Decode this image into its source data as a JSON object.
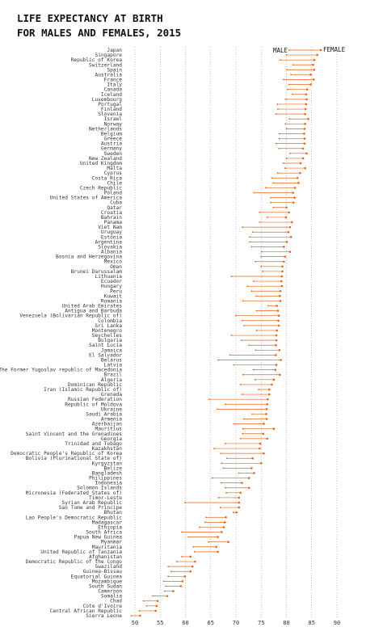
{
  "chart_data": {
    "type": "dumbbell",
    "title": "LIFE EXPECTANCY AT BIRTH\nFOR MALES AND FEMALES, 2015",
    "xlabel": "",
    "ylabel": "",
    "xlim": [
      45,
      92
    ],
    "xticks": [
      50,
      55,
      60,
      65,
      70,
      75,
      80,
      85,
      90
    ],
    "grid": "vertical dotted",
    "legend": [
      "MALE",
      "FEMALE"
    ],
    "colors": {
      "male_dot": "#e8651a",
      "female_dot": "#e8651a",
      "line": "#e8651a",
      "grid": "#999999"
    },
    "countries": [
      "Japan",
      "Singapore",
      "Republic of Korea",
      "Switzerland",
      "Spain",
      "Australia",
      "France",
      "Italy",
      "Canada",
      "Iceland",
      "Luxembourg",
      "Portugal",
      "Finland",
      "Slovenia",
      "Israel",
      "Norway",
      "Netherlands",
      "Belgium",
      "Greece",
      "Austria",
      "Germany",
      "Sweden",
      "New Zealand",
      "United Kingdom",
      "Malta",
      "Cyprus",
      "Costa Rica",
      "Chile",
      "Czech Republic",
      "Poland",
      "United States of America",
      "Cuba",
      "Qatar",
      "Croatia",
      "Bahrain",
      "Panama",
      "Viet Nam",
      "Uruguay",
      "Estonia",
      "Argentina",
      "Slovakia",
      "Albania",
      "Bosnia and Herzegovina",
      "Mexico",
      "Oman",
      "Brunei Darussalam",
      "Lithuania",
      "Ecuador",
      "Hungary",
      "Peru",
      "Kuwait",
      "Romania",
      "United Arab Emirates",
      "Antigua and Barbuda",
      "Venezuela (Bolivarian Republic of)",
      "Colombia",
      "Sri Lanka",
      "Montenegro",
      "Seychelles",
      "Bulgaria",
      "Saint Lucia",
      "Jamaica",
      "El Salvador",
      "Belarus",
      "Latvia",
      "The Former Yugoslav republic of Macedonia",
      "Brazil",
      "Algeria",
      "Dominican Republic",
      "Iran (Islamic Republic of)",
      "Grenada",
      "Russian Federation",
      "Republic of Moldova",
      "Ukraine",
      "Saudi Arabia",
      "Armenia",
      "Azerbaijan",
      "Mauritius",
      "Saint Vincent and the Grenadines",
      "Georgia",
      "Trinidad and Tobago",
      "Kazakhstan",
      "Democratic People's Republic of Korea",
      "Bolivia (Plurinational State of)",
      "Kyrgyzstan",
      "Belize",
      "Bangladesh",
      "Philippines",
      "Indonesia",
      "Solomon Islands",
      "Micronesia (Federated States of)",
      "Timor-Leste",
      "Syrian Arab Republic",
      "Sao Tome and Principe",
      "Bhutan",
      "Lao People's Democratic Republic",
      "Madagascar",
      "Ethiopia",
      "South Africa",
      "Papua New Guinea",
      "Myanmar",
      "Mauritania",
      "United Republic of Tanzania",
      "Afghanistan",
      "Democratic Republic of the Congo",
      "Swaziland",
      "Guinea-Bissau",
      "Equatorial Guinea",
      "Mozambique",
      "South Sudan",
      "Cameroon",
      "Somalia",
      "Chad",
      "Cote d'Ivoire",
      "Central African Republic",
      "Sierra Leone"
    ],
    "male": [
      80.5,
      80.0,
      78.8,
      81.3,
      80.1,
      80.9,
      79.4,
      80.5,
      80.2,
      81.2,
      79.8,
      78.2,
      78.3,
      77.9,
      80.6,
      79.8,
      80.0,
      78.6,
      78.6,
      78.0,
      78.5,
      80.7,
      80.0,
      79.4,
      79.7,
      78.3,
      77.1,
      77.4,
      75.9,
      73.6,
      76.9,
      76.9,
      77.4,
      74.7,
      76.2,
      74.7,
      71.3,
      73.3,
      72.7,
      72.7,
      73.1,
      75.1,
      75.0,
      73.9,
      75.0,
      75.3,
      69.1,
      73.5,
      72.3,
      73.1,
      74.0,
      71.4,
      76.4,
      74.1,
      70.0,
      71.2,
      71.6,
      74.1,
      69.1,
      71.1,
      72.6,
      73.9,
      68.8,
      66.5,
      69.6,
      73.5,
      71.4,
      73.8,
      70.9,
      74.5,
      71.2,
      64.7,
      67.9,
      66.3,
      73.2,
      71.6,
      69.6,
      71.4,
      71.3,
      70.9,
      67.9,
      65.7,
      67.0,
      68.2,
      67.2,
      67.5,
      70.6,
      65.3,
      67.1,
      67.9,
      68.1,
      66.6,
      59.9,
      66.9,
      69.5,
      64.1,
      63.9,
      62.8,
      59.3,
      60.6,
      64.6,
      61.6,
      61.8,
      59.3,
      58.3,
      56.6,
      57.2,
      56.6,
      55.7,
      56.1,
      55.9,
      53.5,
      51.7,
      52.3,
      50.9,
      49.3
    ],
    "female": [
      86.8,
      86.1,
      85.5,
      85.3,
      85.5,
      84.8,
      85.4,
      84.8,
      84.1,
      83.9,
      84.0,
      83.9,
      83.8,
      83.7,
      84.3,
      83.7,
      83.6,
      83.5,
      83.6,
      83.6,
      83.3,
      84.0,
      83.3,
      82.8,
      83.7,
      82.7,
      82.2,
      82.4,
      81.7,
      81.3,
      81.6,
      81.4,
      80.0,
      80.5,
      79.9,
      81.1,
      80.7,
      80.4,
      80.9,
      80.1,
      79.5,
      80.7,
      79.7,
      79.5,
      79.2,
      79.2,
      79.1,
      79.0,
      79.1,
      78.8,
      78.7,
      78.8,
      78.1,
      78.3,
      78.5,
      78.4,
      78.5,
      78.1,
      78.0,
      78.0,
      77.9,
      78.6,
      77.9,
      78.9,
      78.0,
      77.8,
      78.7,
      77.5,
      77.1,
      76.6,
      76.6,
      76.3,
      76.2,
      76.1,
      76.0,
      76.1,
      75.5,
      77.5,
      75.4,
      76.2,
      74.8,
      74.7,
      75.5,
      73.3,
      75.0,
      73.1,
      73.6,
      72.6,
      71.2,
      72.6,
      70.9,
      70.6,
      70.6,
      70.6,
      70.1,
      68.0,
      67.8,
      67.6,
      67.2,
      66.4,
      68.5,
      66.1,
      66.4,
      61.0,
      61.9,
      61.4,
      61.0,
      59.9,
      59.4,
      59.1,
      57.6,
      56.4,
      54.5,
      54.3,
      54.1,
      51.0
    ]
  }
}
